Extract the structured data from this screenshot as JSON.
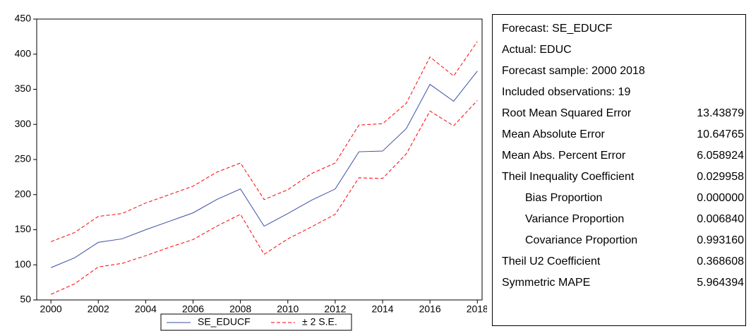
{
  "chart_data": {
    "type": "line",
    "x": [
      2000,
      2001,
      2002,
      2003,
      2004,
      2005,
      2006,
      2007,
      2008,
      2009,
      2010,
      2011,
      2012,
      2013,
      2014,
      2015,
      2016,
      2017,
      2018
    ],
    "series": [
      {
        "name": "SE_EDUCF",
        "color": "#3b4fa0",
        "values": [
          96,
          110,
          132,
          137,
          150,
          162,
          174,
          193,
          208,
          155,
          173,
          192,
          208,
          261,
          262,
          294,
          357,
          333,
          376
        ]
      }
    ],
    "band": {
      "name": "± 2 S.E.",
      "color": "#ff0000",
      "upper": [
        133,
        146,
        169,
        173,
        188,
        200,
        212,
        232,
        245,
        193,
        207,
        230,
        245,
        299,
        301,
        330,
        396,
        369,
        418
      ],
      "lower": [
        58,
        73,
        97,
        102,
        113,
        125,
        136,
        155,
        172,
        115,
        137,
        154,
        172,
        224,
        223,
        258,
        319,
        298,
        334
      ]
    },
    "xlim": [
      1999.4,
      2018.2
    ],
    "xticks": [
      2000,
      2002,
      2004,
      2006,
      2008,
      2010,
      2012,
      2014,
      2016,
      2018
    ],
    "ylim": [
      50,
      450
    ],
    "yticks": [
      50,
      100,
      150,
      200,
      250,
      300,
      350,
      400,
      450
    ]
  },
  "statistics": {
    "header": [
      "Forecast: SE_EDUCF",
      "Actual: EDUC",
      "Forecast sample: 2000 2018",
      "Included observations: 19"
    ],
    "rows": [
      {
        "label": "Root Mean Squared Error",
        "value": "13.43879"
      },
      {
        "label": "Mean Absolute Error",
        "value": "10.64765"
      },
      {
        "label": "Mean Abs. Percent Error",
        "value": "6.058924"
      },
      {
        "label": "Theil Inequality Coefficient",
        "value": "0.029958"
      },
      {
        "label": "Bias Proportion",
        "value": "0.000000"
      },
      {
        "label": "Variance Proportion",
        "value": "0.006840"
      },
      {
        "label": "Covariance Proportion",
        "value": "0.993160"
      },
      {
        "label": "Theil U2 Coefficient",
        "value": "0.368608"
      },
      {
        "label": "Symmetric MAPE",
        "value": "5.964394"
      }
    ]
  }
}
